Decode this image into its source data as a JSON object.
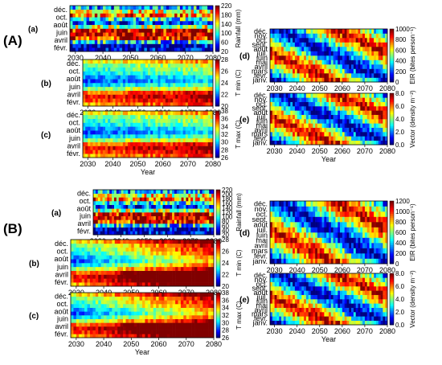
{
  "figure": {
    "section_labels": [
      "(A)",
      "(B)"
    ],
    "panel_letters": [
      "(a)",
      "(b)",
      "(c)",
      "(d)",
      "(e)"
    ],
    "x_axis_label": "Year"
  },
  "chart_data": [
    {
      "id": "A-a",
      "section": "(A)",
      "panel": "(a)",
      "type": "heatmap",
      "x": {
        "range": [
          2028,
          2080
        ],
        "ticks": [
          2030,
          2040,
          2050,
          2060,
          2070,
          2080
        ],
        "label": ""
      },
      "y_labels": [
        "févr.",
        "avril",
        "juin",
        "août",
        "oct.",
        "déc."
      ],
      "months": 12,
      "seasonal_peak_month": 5,
      "trend": 0,
      "colorbar": {
        "label": "Rainfall (mm)",
        "ticks": [
          20,
          60,
          100,
          140,
          180,
          220
        ],
        "range": [
          20,
          220
        ]
      },
      "pattern": "rain"
    },
    {
      "id": "A-b",
      "section": "(A)",
      "panel": "(b)",
      "type": "heatmap",
      "x": {
        "range": [
          2028,
          2080
        ],
        "ticks": [
          2030,
          2040,
          2050,
          2060,
          2070,
          2080
        ],
        "label": ""
      },
      "y_labels": [
        "févr.",
        "avril",
        "juin",
        "août",
        "oct.",
        "déc."
      ],
      "months": 12,
      "trend": 0.15,
      "colorbar": {
        "label": "T min (C)",
        "ticks": [
          20,
          22,
          24,
          26,
          28
        ],
        "range": [
          20,
          28
        ]
      },
      "pattern": "temp"
    },
    {
      "id": "A-c",
      "section": "(A)",
      "panel": "(c)",
      "type": "heatmap",
      "x": {
        "range": [
          2028,
          2080
        ],
        "ticks": [
          2030,
          2040,
          2050,
          2060,
          2070,
          2080
        ],
        "label": "Year"
      },
      "y_labels": [
        "févr.",
        "avril",
        "juin",
        "août",
        "oct.",
        "déc."
      ],
      "months": 12,
      "trend": 0.15,
      "colorbar": {
        "label": "T max (C)",
        "ticks": [
          26,
          28,
          30,
          32,
          34,
          36,
          38
        ],
        "range": [
          26,
          38
        ]
      },
      "pattern": "temp"
    },
    {
      "id": "A-d",
      "section": "(A)",
      "panel": "(d)",
      "type": "heatmap",
      "x": {
        "range": [
          2028,
          2080
        ],
        "ticks": [
          2030,
          2040,
          2050,
          2060,
          2070,
          2080
        ],
        "label": ""
      },
      "y_labels": [
        "janv.",
        "févr.",
        "mars",
        "avril",
        "mai",
        "juin",
        "juil.",
        "août",
        "sept.",
        "oct.",
        "nov.",
        "déc."
      ],
      "months": 12,
      "colorbar": {
        "label": "EIR (bites person⁻¹)",
        "ticks": [
          0,
          200,
          400,
          600,
          800,
          1000
        ],
        "range": [
          0,
          1000
        ]
      },
      "pattern": "shift"
    },
    {
      "id": "A-e",
      "section": "(A)",
      "panel": "(e)",
      "type": "heatmap",
      "x": {
        "range": [
          2028,
          2080
        ],
        "ticks": [
          2030,
          2040,
          2050,
          2060,
          2070,
          2080
        ],
        "label": "Year"
      },
      "y_labels": [
        "janv.",
        "févr.",
        "mars",
        "avril",
        "mai",
        "juin",
        "juil.",
        "août",
        "sept.",
        "oct.",
        "nov.",
        "déc."
      ],
      "months": 12,
      "colorbar": {
        "label": "Vector (density m⁻²)",
        "ticks": [
          "0.0",
          "2.0",
          "4.0",
          "6.0",
          "8.0"
        ],
        "range": [
          0,
          8
        ]
      },
      "pattern": "shift"
    },
    {
      "id": "B-a",
      "section": "(B)",
      "panel": "(a)",
      "type": "heatmap",
      "x": {
        "range": [
          2028,
          2080
        ],
        "ticks": [
          2030,
          2040,
          2050,
          2060,
          2070,
          2080
        ],
        "label": ""
      },
      "y_labels": [
        "févr.",
        "avril",
        "juin",
        "août",
        "oct.",
        "déc."
      ],
      "months": 12,
      "trend": 0,
      "colorbar": {
        "label": "Rainfall (mm)",
        "ticks": [
          20,
          40,
          60,
          80,
          100,
          120,
          140,
          160,
          180,
          200,
          220
        ],
        "range": [
          20,
          220
        ]
      },
      "pattern": "rain"
    },
    {
      "id": "B-b",
      "section": "(B)",
      "panel": "(b)",
      "type": "heatmap",
      "x": {
        "range": [
          2028,
          2080
        ],
        "ticks": [
          2030,
          2040,
          2050,
          2060,
          2070,
          2080
        ],
        "label": ""
      },
      "y_labels": [
        "févr.",
        "avril",
        "juin",
        "août",
        "oct.",
        "déc."
      ],
      "months": 12,
      "trend": 0.5,
      "colorbar": {
        "label": "T min (C)",
        "ticks": [
          20,
          22,
          24,
          26,
          28
        ],
        "range": [
          20,
          28
        ]
      },
      "pattern": "temp"
    },
    {
      "id": "B-c",
      "section": "(B)",
      "panel": "(c)",
      "type": "heatmap",
      "x": {
        "range": [
          2028,
          2080
        ],
        "ticks": [
          2030,
          2040,
          2050,
          2060,
          2070,
          2080
        ],
        "label": "Year"
      },
      "y_labels": [
        "févr.",
        "avril",
        "juin",
        "août",
        "oct.",
        "déc."
      ],
      "months": 12,
      "trend": 0.5,
      "colorbar": {
        "label": "T max (C)",
        "ticks": [
          26,
          28,
          30,
          32,
          34,
          36,
          38
        ],
        "range": [
          26,
          38
        ]
      },
      "pattern": "temp"
    },
    {
      "id": "B-d",
      "section": "(B)",
      "panel": "(d)",
      "type": "heatmap",
      "x": {
        "range": [
          2028,
          2080
        ],
        "ticks": [
          2030,
          2040,
          2050,
          2060,
          2070,
          2080
        ],
        "label": ""
      },
      "y_labels": [
        "janv.",
        "févr.",
        "mars",
        "avril",
        "mai",
        "juin",
        "juil.",
        "août",
        "sept.",
        "oct.",
        "nov.",
        "déc."
      ],
      "months": 12,
      "colorbar": {
        "label": "EIR (bites person⁻¹)",
        "ticks": [
          0,
          200,
          400,
          600,
          800,
          1000,
          1200
        ],
        "range": [
          0,
          1200
        ]
      },
      "pattern": "shift"
    },
    {
      "id": "B-e",
      "section": "(B)",
      "panel": "(e)",
      "type": "heatmap",
      "x": {
        "range": [
          2028,
          2080
        ],
        "ticks": [
          2030,
          2040,
          2050,
          2060,
          2070,
          2080
        ],
        "label": "Year"
      },
      "y_labels": [
        "janv.",
        "févr.",
        "mars",
        "avril",
        "mai",
        "juin",
        "juil.",
        "août",
        "sept.",
        "oct.",
        "nov.",
        "déc."
      ],
      "months": 12,
      "colorbar": {
        "label": "Vector (density m⁻²)",
        "ticks": [
          "0.0",
          "2.0",
          "4.0",
          "6.0",
          "8.0"
        ],
        "range": [
          0,
          8
        ]
      },
      "pattern": "shift"
    }
  ]
}
